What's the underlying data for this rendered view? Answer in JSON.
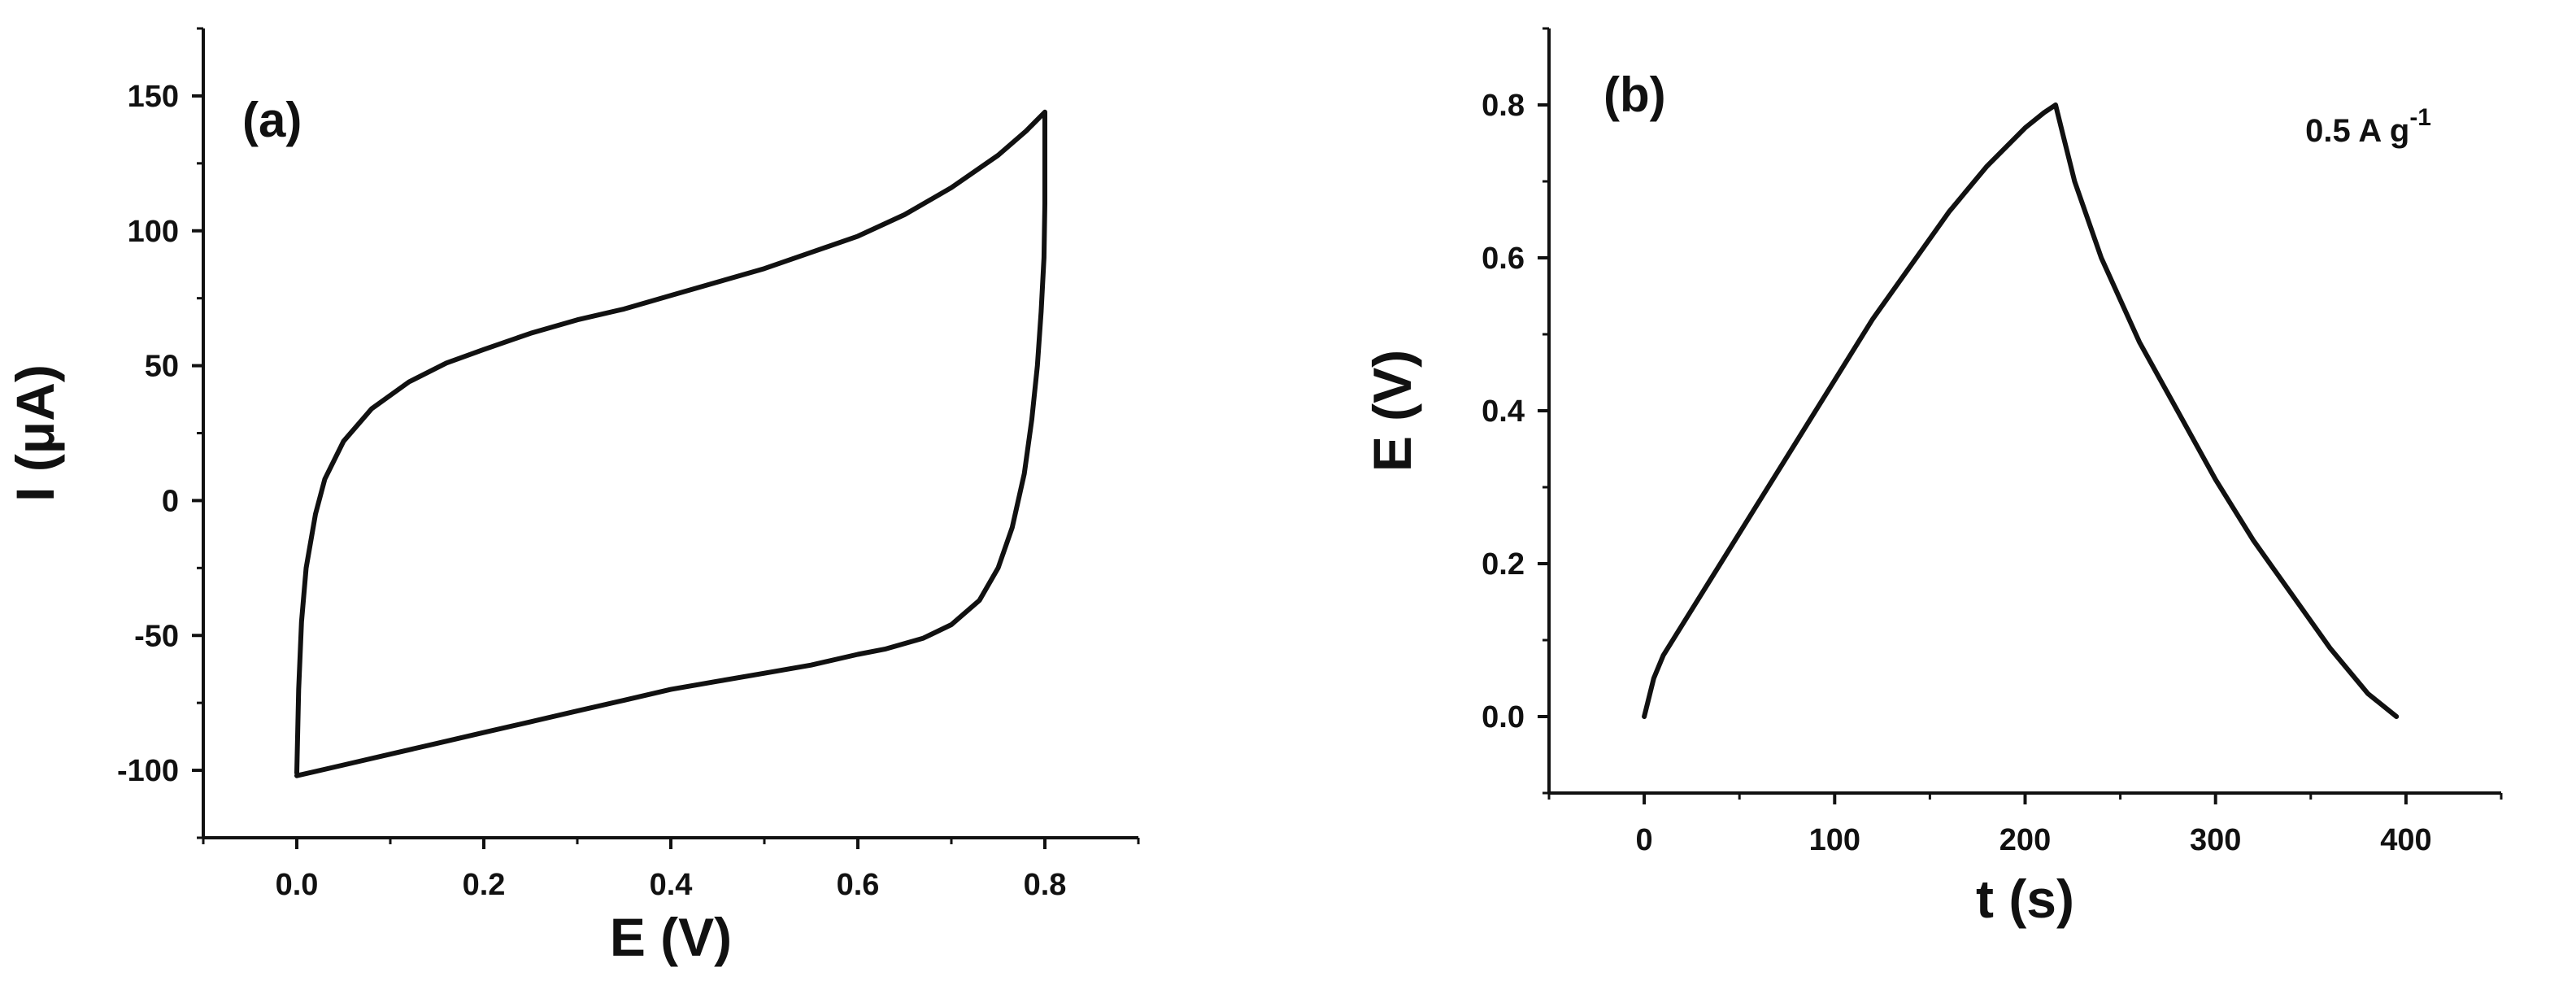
{
  "chart_data": [
    {
      "type": "line",
      "panel_label": "(a)",
      "xlabel": "E (V)",
      "ylabel": "I (μA)",
      "xlim": [
        -0.1,
        0.9
      ],
      "ylim": [
        -125,
        175
      ],
      "xticks": [
        {
          "value": 0.0,
          "label": "0.0"
        },
        {
          "value": 0.2,
          "label": "0.2"
        },
        {
          "value": 0.4,
          "label": "0.4"
        },
        {
          "value": 0.6,
          "label": "0.6"
        },
        {
          "value": 0.8,
          "label": "0.8"
        }
      ],
      "yticks": [
        {
          "value": -100,
          "label": "-100"
        },
        {
          "value": -50,
          "label": "-50"
        },
        {
          "value": 0,
          "label": "0"
        },
        {
          "value": 50,
          "label": "50"
        },
        {
          "value": 100,
          "label": "100"
        },
        {
          "value": 150,
          "label": "150"
        }
      ],
      "series": [
        {
          "color": "#111111",
          "x": [
            0.0,
            0.002,
            0.005,
            0.01,
            0.02,
            0.03,
            0.05,
            0.08,
            0.12,
            0.16,
            0.2,
            0.25,
            0.3,
            0.35,
            0.4,
            0.45,
            0.5,
            0.55,
            0.6,
            0.65,
            0.7,
            0.75,
            0.78,
            0.8,
            0.8,
            0.799,
            0.796,
            0.792,
            0.786,
            0.778,
            0.765,
            0.75,
            0.73,
            0.7,
            0.67,
            0.63,
            0.6,
            0.55,
            0.5,
            0.45,
            0.4,
            0.35,
            0.3,
            0.25,
            0.2,
            0.15,
            0.1,
            0.05,
            0.0
          ],
          "y": [
            -101,
            -70,
            -45,
            -25,
            -5,
            8,
            22,
            34,
            44,
            51,
            56,
            62,
            67,
            71,
            76,
            81,
            86,
            92,
            98,
            106,
            116,
            128,
            137,
            144,
            110,
            90,
            70,
            50,
            30,
            10,
            -10,
            -25,
            -37,
            -46,
            -51,
            -55,
            -57,
            -61,
            -64,
            -67,
            -70,
            -74,
            -78,
            -82,
            -86,
            -90,
            -94,
            -98,
            -102
          ]
        }
      ]
    },
    {
      "type": "line",
      "panel_label": "(b)",
      "xlabel": "t (s)",
      "ylabel": "E (V)",
      "annotation": {
        "text": "0.5 A g",
        "superscript": "-1"
      },
      "xlim": [
        -50,
        450
      ],
      "ylim": [
        -0.1,
        0.9
      ],
      "xticks": [
        {
          "value": 0,
          "label": "0"
        },
        {
          "value": 100,
          "label": "100"
        },
        {
          "value": 200,
          "label": "200"
        },
        {
          "value": 300,
          "label": "300"
        },
        {
          "value": 400,
          "label": "400"
        }
      ],
      "yticks": [
        {
          "value": 0.0,
          "label": "0.0"
        },
        {
          "value": 0.2,
          "label": "0.2"
        },
        {
          "value": 0.4,
          "label": "0.4"
        },
        {
          "value": 0.6,
          "label": "0.6"
        },
        {
          "value": 0.8,
          "label": "0.8"
        }
      ],
      "series": [
        {
          "color": "#111111",
          "x": [
            0,
            5,
            10,
            20,
            40,
            60,
            80,
            100,
            120,
            140,
            160,
            180,
            200,
            210,
            216,
            220,
            226,
            240,
            260,
            280,
            300,
            320,
            340,
            360,
            380,
            395
          ],
          "y": [
            0.0,
            0.05,
            0.08,
            0.12,
            0.2,
            0.28,
            0.36,
            0.44,
            0.52,
            0.59,
            0.66,
            0.72,
            0.77,
            0.79,
            0.8,
            0.76,
            0.7,
            0.6,
            0.49,
            0.4,
            0.31,
            0.23,
            0.16,
            0.09,
            0.03,
            0.0
          ]
        }
      ]
    }
  ]
}
